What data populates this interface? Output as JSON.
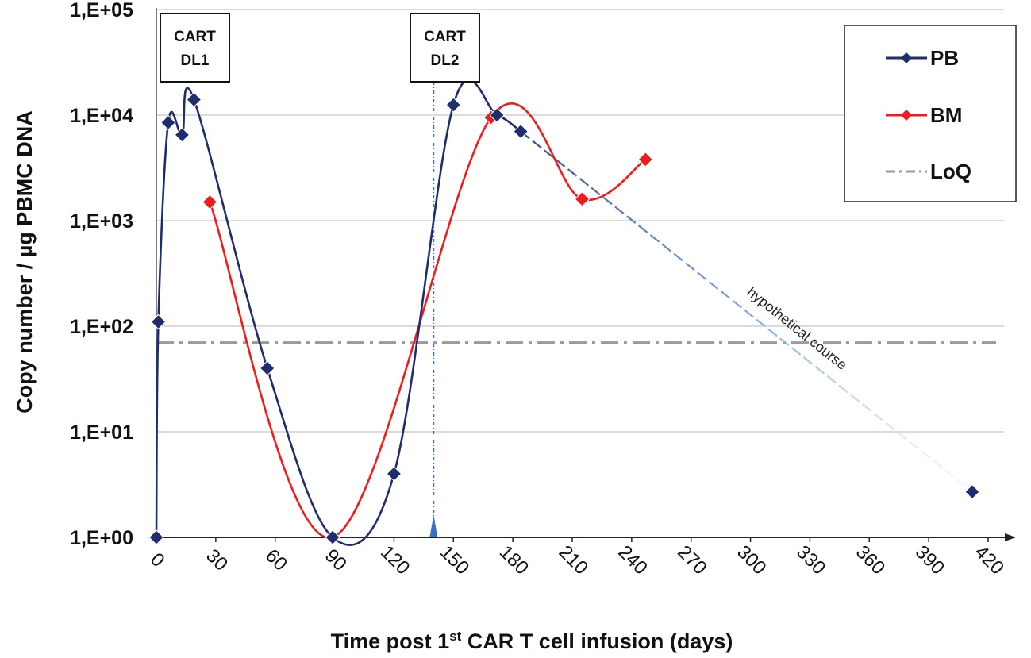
{
  "chart_data": {
    "type": "line",
    "title": "",
    "xlabel": "Time post 1st CAR T cell infusion (days)",
    "xlabel_parts": {
      "pre": "Time post 1",
      "sup": "st",
      "post": " CAR T cell infusion (days)"
    },
    "ylabel": "Copy number / µg PBMC DNA",
    "y_scale": "log",
    "xlim": [
      0,
      420
    ],
    "ylim": [
      1,
      100000
    ],
    "x_ticks": [
      "0",
      "30",
      "60",
      "90",
      "120",
      "150",
      "180",
      "210",
      "240",
      "270",
      "300",
      "330",
      "360",
      "390",
      "420"
    ],
    "y_ticks": [
      "1,E+00",
      "1,E+01",
      "1,E+02",
      "1,E+03",
      "1,E+04",
      "1,E+05"
    ],
    "grid": "horizontal",
    "series": [
      {
        "name": "PB",
        "color": "#1f2d6e",
        "marker": "diamond",
        "points": [
          [
            0,
            1
          ],
          [
            1,
            110
          ],
          [
            6,
            8500
          ],
          [
            13,
            6500
          ],
          [
            19,
            14000
          ],
          [
            56,
            40
          ],
          [
            89,
            1
          ],
          [
            120,
            4
          ],
          [
            150,
            12500
          ],
          [
            172,
            10000
          ],
          [
            184,
            7000
          ]
        ],
        "hypothetical_points": [
          [
            184,
            7000
          ],
          [
            412,
            2.7
          ]
        ]
      },
      {
        "name": "BM",
        "color": "#ee1c1c",
        "marker": "diamond",
        "points": [
          [
            27,
            1500
          ],
          [
            89,
            1
          ],
          [
            169,
            9500
          ],
          [
            215,
            1600
          ],
          [
            247,
            3800
          ]
        ]
      }
    ],
    "loq": {
      "name": "LoQ",
      "value": 70,
      "color": "#9a9a9a"
    },
    "events": [
      {
        "label_line1": "CART",
        "label_line2": "DL1",
        "day": 0
      },
      {
        "label_line1": "CART",
        "label_line2": "DL2",
        "day": 140
      }
    ],
    "annotations": [
      "hypothetical course"
    ],
    "legend": {
      "position": "top-right",
      "entries": [
        "PB",
        "BM",
        "LoQ"
      ]
    }
  }
}
